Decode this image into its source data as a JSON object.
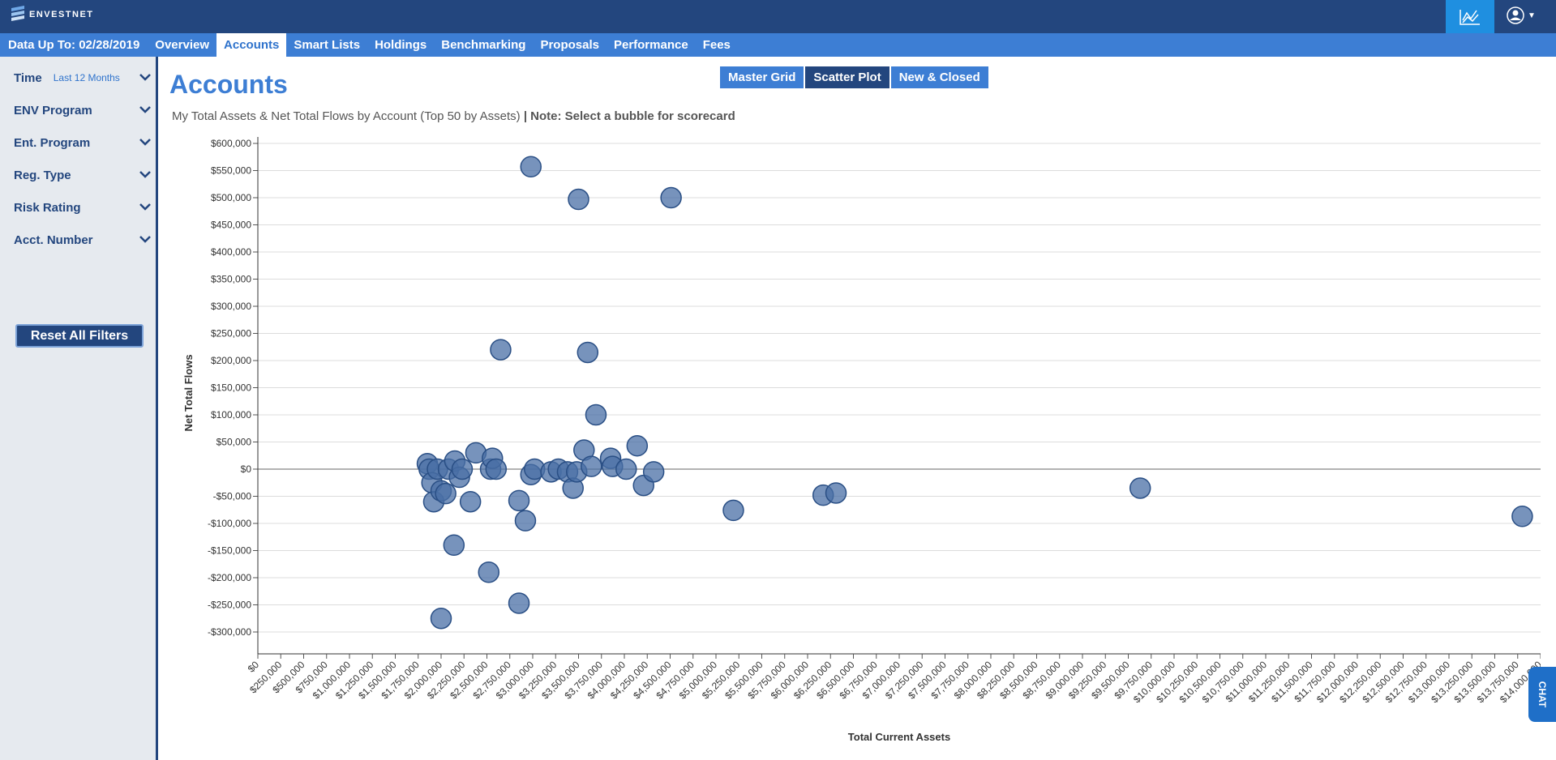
{
  "brand": {
    "name": "ENVESTNET"
  },
  "header": {
    "chart_icon": "line-chart-icon",
    "user_icon": "user-circle-icon"
  },
  "nav": {
    "data_up_to": "Data Up To: 02/28/2019",
    "tabs": [
      {
        "label": "Overview"
      },
      {
        "label": "Accounts"
      },
      {
        "label": "Smart Lists"
      },
      {
        "label": "Holdings"
      },
      {
        "label": "Benchmarking"
      },
      {
        "label": "Proposals"
      },
      {
        "label": "Performance"
      },
      {
        "label": "Fees"
      }
    ],
    "active_tab": "Accounts"
  },
  "sidebar": {
    "time": {
      "label": "Time",
      "value": "Last 12 Months"
    },
    "filters": [
      {
        "label": "ENV Program"
      },
      {
        "label": "Ent. Program"
      },
      {
        "label": "Reg. Type"
      },
      {
        "label": "Risk Rating"
      },
      {
        "label": "Acct. Number"
      }
    ],
    "reset_label": "Reset All Filters"
  },
  "main": {
    "title": "Accounts",
    "view_tabs": [
      "Master Grid",
      "Scatter Plot",
      "New & Closed"
    ],
    "active_view": "Scatter Plot",
    "subtitle": "My Total Assets & Net Total Flows by Account (Top 50 by Assets)",
    "note": "| Note: Select a bubble for scorecard"
  },
  "chat": {
    "label": "CHAT"
  },
  "colors": {
    "header": "#23467e",
    "nav": "#3d7ed4",
    "accent": "#2f73cc",
    "bubble": "#4a6fa5"
  },
  "chart_data": {
    "type": "scatter",
    "xlabel": "Total Current Assets",
    "ylabel": "Net Total Flows",
    "xlim": [
      0,
      14000000
    ],
    "ylim": [
      -300000,
      600000
    ],
    "x_tick_step": 250000,
    "y_tick_step": 50000,
    "grid": true,
    "points": [
      {
        "x": 1850000,
        "y": 10000
      },
      {
        "x": 1870000,
        "y": 0
      },
      {
        "x": 1900000,
        "y": -25000
      },
      {
        "x": 1920000,
        "y": -60000
      },
      {
        "x": 1960000,
        "y": 0
      },
      {
        "x": 2000000,
        "y": -40000
      },
      {
        "x": 2050000,
        "y": -45000
      },
      {
        "x": 2080000,
        "y": 0
      },
      {
        "x": 2150000,
        "y": 15000
      },
      {
        "x": 2200000,
        "y": -15000
      },
      {
        "x": 2230000,
        "y": 0
      },
      {
        "x": 2320000,
        "y": -60000
      },
      {
        "x": 2380000,
        "y": 30000
      },
      {
        "x": 2000000,
        "y": -275000
      },
      {
        "x": 2140000,
        "y": -140000
      },
      {
        "x": 2520000,
        "y": -190000
      },
      {
        "x": 2540000,
        "y": 0
      },
      {
        "x": 2560000,
        "y": 20000
      },
      {
        "x": 2600000,
        "y": 0
      },
      {
        "x": 2650000,
        "y": 220000
      },
      {
        "x": 2850000,
        "y": -58000
      },
      {
        "x": 2850000,
        "y": -247000
      },
      {
        "x": 2920000,
        "y": -95000
      },
      {
        "x": 2980000,
        "y": -10000
      },
      {
        "x": 3020000,
        "y": 0
      },
      {
        "x": 2980000,
        "y": 557000
      },
      {
        "x": 3200000,
        "y": -5000
      },
      {
        "x": 3280000,
        "y": 0
      },
      {
        "x": 3380000,
        "y": -5000
      },
      {
        "x": 3440000,
        "y": -35000
      },
      {
        "x": 3480000,
        "y": -5000
      },
      {
        "x": 3500000,
        "y": 497000
      },
      {
        "x": 3560000,
        "y": 35000
      },
      {
        "x": 3600000,
        "y": 215000
      },
      {
        "x": 3640000,
        "y": 5000
      },
      {
        "x": 3690000,
        "y": 100000
      },
      {
        "x": 3850000,
        "y": 20000
      },
      {
        "x": 3870000,
        "y": 5000
      },
      {
        "x": 4020000,
        "y": 0
      },
      {
        "x": 4140000,
        "y": 43000
      },
      {
        "x": 4210000,
        "y": -30000
      },
      {
        "x": 4320000,
        "y": -5000
      },
      {
        "x": 4510000,
        "y": 500000
      },
      {
        "x": 5190000,
        "y": -76000
      },
      {
        "x": 6170000,
        "y": -48000
      },
      {
        "x": 6310000,
        "y": -44000
      },
      {
        "x": 9630000,
        "y": -35000
      },
      {
        "x": 13800000,
        "y": -87000
      }
    ]
  }
}
